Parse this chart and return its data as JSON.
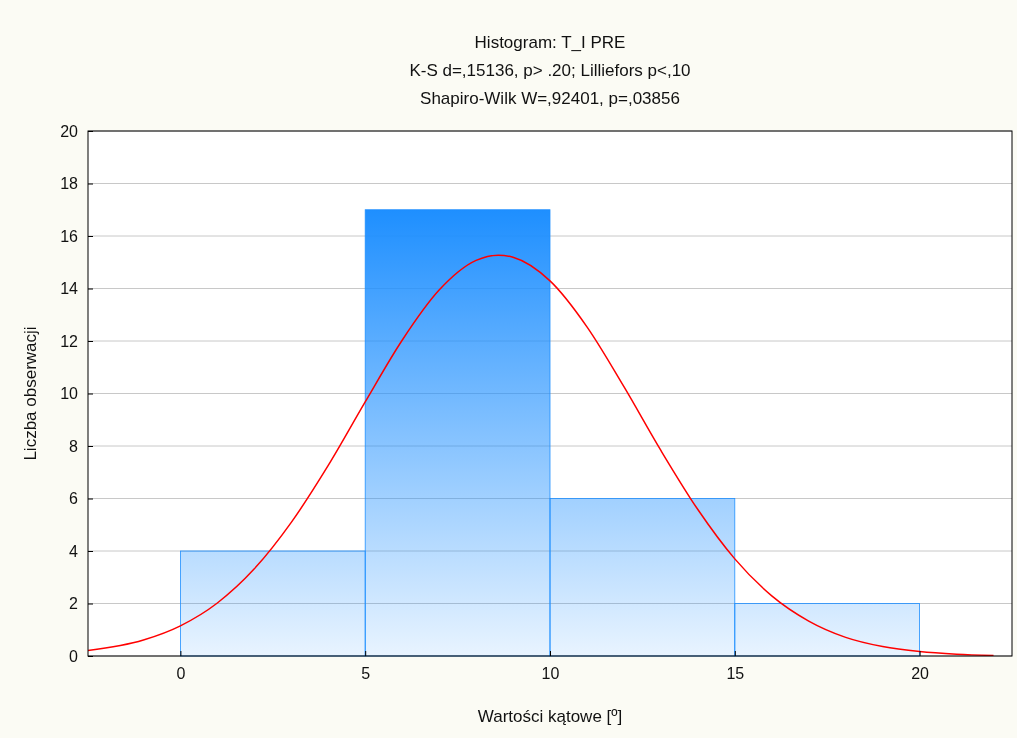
{
  "chart_data": {
    "type": "histogram",
    "title": "Histogram: T_I  PRE",
    "subtitle": "K-S d=,15136, p> .20; Lilliefors p<,10\nShapiro-Wilk W=,92401, p=,03856",
    "xlabel": "Wartości kątowe [º]",
    "ylabel": "Liczba obserwacji",
    "xlim": [
      -2.5,
      22.5
    ],
    "xticks": [
      0,
      5,
      10,
      15,
      20
    ],
    "ylim": [
      0,
      20
    ],
    "yticks": [
      0,
      2,
      4,
      6,
      8,
      10,
      12,
      14,
      16,
      18,
      20
    ],
    "grid": "y",
    "series": [
      {
        "bins": [
          0,
          5,
          10,
          15,
          20
        ],
        "values": [
          4,
          17,
          6,
          2
        ],
        "color": "#1e8fff"
      },
      {
        "type": "line",
        "color": "#ff0000",
        "x": [
          -2.5,
          -1,
          0,
          1,
          2,
          3,
          4,
          5,
          6,
          7,
          8,
          8.6,
          9,
          10,
          11,
          12,
          13,
          14,
          15,
          16,
          17,
          18,
          19,
          20,
          21,
          22
        ],
        "values": [
          0.21,
          0.61,
          1.15,
          2.02,
          3.32,
          5.09,
          7.26,
          9.68,
          12.03,
          13.94,
          15.07,
          15.27,
          15.19,
          14.29,
          12.54,
          10.26,
          7.83,
          5.58,
          3.7,
          2.29,
          1.33,
          0.71,
          0.36,
          0.17,
          0.07,
          0.02
        ]
      }
    ]
  }
}
